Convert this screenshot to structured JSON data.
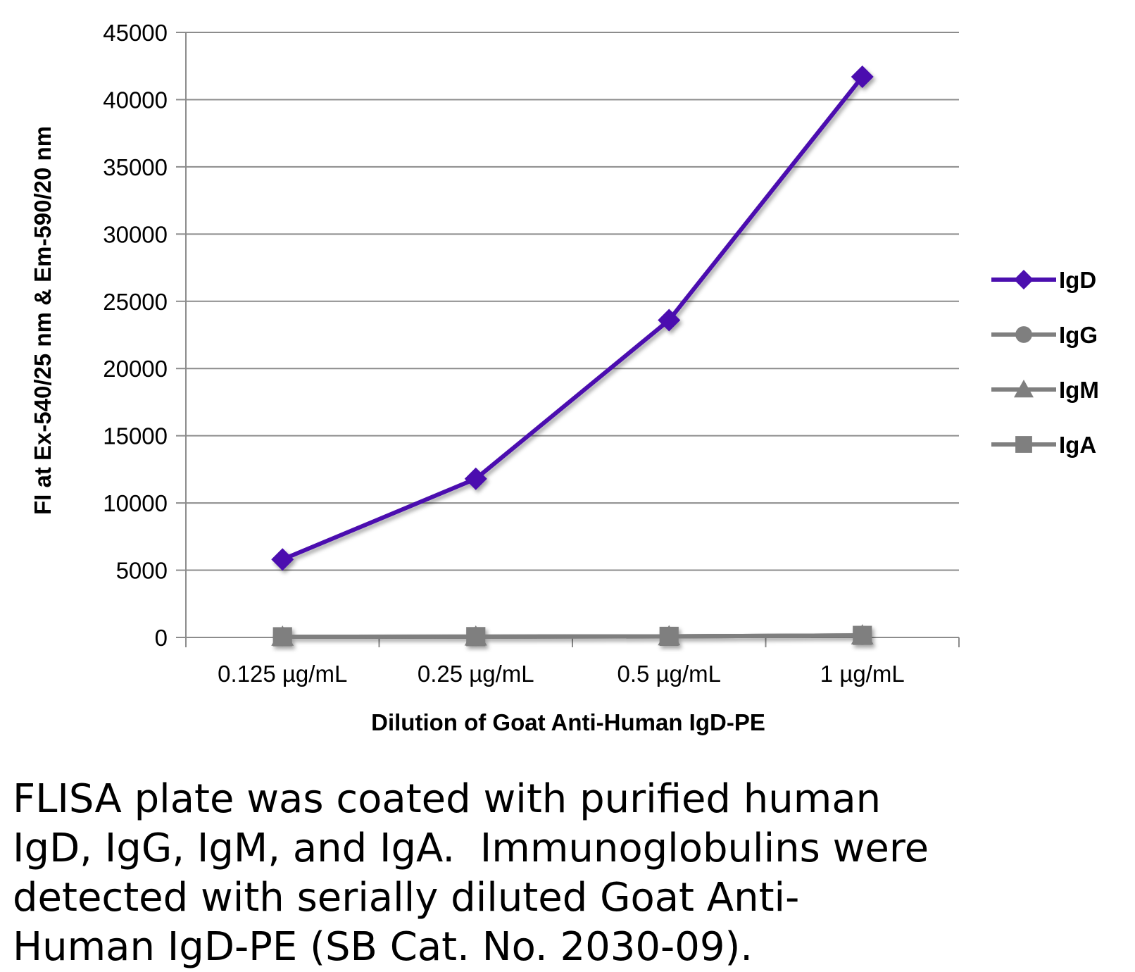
{
  "chart_data": {
    "type": "line",
    "title": "",
    "xlabel": "Dilution of Goat Anti-Human IgD-PE",
    "ylabel": "FI at Ex-540/25 nm & Em-590/20 nm",
    "categories": [
      "0.125 µg/mL",
      "0.25 µg/mL",
      "0.5 µg/mL",
      "1 µg/mL"
    ],
    "ylim": [
      0,
      45000
    ],
    "yticks": [
      "0",
      "5000",
      "10000",
      "15000",
      "20000",
      "25000",
      "30000",
      "35000",
      "40000",
      "45000"
    ],
    "grid": true,
    "legend_position": "right",
    "series": [
      {
        "name": "IgD",
        "values": [
          5800,
          11800,
          23600,
          41700
        ],
        "color": "#4B0FAF",
        "marker": "diamond"
      },
      {
        "name": "IgG",
        "values": [
          50,
          60,
          80,
          150
        ],
        "color": "#7F7F7F",
        "marker": "circle"
      },
      {
        "name": "IgM",
        "values": [
          50,
          60,
          80,
          150
        ],
        "color": "#7F7F7F",
        "marker": "triangle"
      },
      {
        "name": "IgA",
        "values": [
          50,
          60,
          80,
          150
        ],
        "color": "#7F7F7F",
        "marker": "square"
      }
    ]
  },
  "caption": {
    "lines": [
      "FLISA plate was coated with purified human",
      "IgD, IgG, IgM, and IgA.  Immunoglobulins were",
      "detected with serially diluted Goat Anti-",
      "Human IgD-PE (SB Cat. No. 2030-09)."
    ]
  }
}
